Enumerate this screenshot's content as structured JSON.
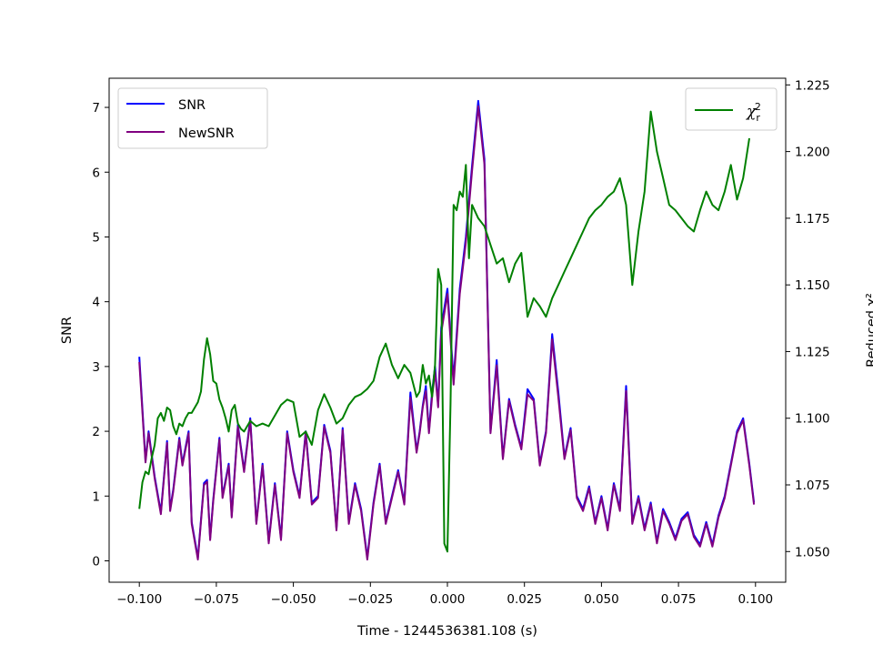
{
  "chart_data": {
    "type": "line",
    "title": "",
    "xlabel": "Time - 1244536381.108 (s)",
    "ylabel": "SNR",
    "y2label": "Reduced χ²",
    "xlim": [
      -0.1098,
      0.1098
    ],
    "ylim": [
      -0.33,
      7.45
    ],
    "y2lim": [
      1.0385,
      1.2275
    ],
    "x_ticks": [
      -0.1,
      -0.075,
      -0.05,
      -0.025,
      0.0,
      0.025,
      0.05,
      0.075,
      0.1
    ],
    "x_tick_labels": [
      "−0.100",
      "−0.075",
      "−0.050",
      "−0.025",
      "0.000",
      "0.025",
      "0.050",
      "0.075",
      "0.100"
    ],
    "y_ticks": [
      0,
      1,
      2,
      3,
      4,
      5,
      6,
      7
    ],
    "y_tick_labels": [
      "0",
      "1",
      "2",
      "3",
      "4",
      "5",
      "6",
      "7"
    ],
    "y2_ticks": [
      1.05,
      1.075,
      1.1,
      1.125,
      1.15,
      1.175,
      1.2,
      1.225
    ],
    "y2_tick_labels": [
      "1.050",
      "1.075",
      "1.100",
      "1.125",
      "1.150",
      "1.175",
      "1.200",
      "1.225"
    ],
    "grid": false,
    "legend_left": {
      "placement": "upper-left",
      "entries": [
        "SNR",
        "NewSNR"
      ]
    },
    "legend_right": {
      "placement": "upper-right",
      "entries": [
        "χ_r^2"
      ]
    },
    "series": [
      {
        "name": "SNR",
        "axis": "left",
        "color": "#0000ff",
        "x": [
          -0.1,
          -0.098,
          -0.097,
          -0.095,
          -0.093,
          -0.091,
          -0.09,
          -0.089,
          -0.087,
          -0.086,
          -0.084,
          -0.083,
          -0.081,
          -0.079,
          -0.078,
          -0.077,
          -0.076,
          -0.074,
          -0.073,
          -0.071,
          -0.07,
          -0.068,
          -0.066,
          -0.064,
          -0.062,
          -0.06,
          -0.058,
          -0.056,
          -0.054,
          -0.052,
          -0.05,
          -0.048,
          -0.046,
          -0.044,
          -0.042,
          -0.04,
          -0.038,
          -0.036,
          -0.034,
          -0.032,
          -0.03,
          -0.028,
          -0.026,
          -0.024,
          -0.022,
          -0.02,
          -0.018,
          -0.016,
          -0.014,
          -0.012,
          -0.01,
          -0.009,
          -0.008,
          -0.007,
          -0.006,
          -0.005,
          -0.004,
          -0.003,
          -0.002,
          0.0,
          0.002,
          0.004,
          0.006,
          0.008,
          0.01,
          0.012,
          0.014,
          0.016,
          0.018,
          0.02,
          0.022,
          0.024,
          0.026,
          0.028,
          0.03,
          0.032,
          0.034,
          0.036,
          0.038,
          0.04,
          0.042,
          0.044,
          0.046,
          0.048,
          0.05,
          0.052,
          0.054,
          0.056,
          0.058,
          0.06,
          0.062,
          0.064,
          0.066,
          0.068,
          0.07,
          0.072,
          0.074,
          0.076,
          0.078,
          0.08,
          0.082,
          0.084,
          0.086,
          0.088,
          0.09,
          0.092,
          0.094,
          0.096,
          0.098,
          0.0995
        ],
        "y": [
          3.15,
          1.55,
          2.0,
          1.3,
          0.75,
          1.85,
          0.8,
          1.1,
          1.9,
          1.5,
          2.0,
          0.6,
          0.05,
          1.2,
          1.25,
          0.35,
          0.95,
          1.9,
          1.0,
          1.5,
          0.7,
          2.1,
          1.4,
          2.2,
          0.6,
          1.5,
          0.3,
          1.2,
          0.35,
          2.0,
          1.4,
          1.0,
          2.0,
          0.9,
          1.0,
          2.1,
          1.7,
          0.5,
          2.05,
          0.6,
          1.2,
          0.8,
          0.05,
          0.9,
          1.5,
          0.6,
          1.0,
          1.4,
          0.9,
          2.6,
          1.7,
          2.0,
          2.4,
          2.7,
          2.0,
          2.6,
          3.0,
          2.4,
          3.6,
          4.2,
          2.8,
          4.2,
          5.0,
          6.1,
          7.1,
          6.2,
          2.0,
          3.1,
          1.6,
          2.5,
          2.1,
          1.75,
          2.65,
          2.5,
          1.5,
          2.0,
          3.5,
          2.6,
          1.6,
          2.05,
          1.0,
          0.8,
          1.15,
          0.6,
          1.0,
          0.5,
          1.2,
          0.8,
          2.7,
          0.6,
          1.0,
          0.5,
          0.9,
          0.3,
          0.8,
          0.6,
          0.35,
          0.65,
          0.75,
          0.4,
          0.25,
          0.6,
          0.25,
          0.7,
          1.0,
          1.5,
          2.0,
          2.2,
          1.5,
          0.9
        ],
        "note": ""
      },
      {
        "name": "NewSNR",
        "axis": "left",
        "color": "#800080",
        "x": [],
        "y": []
      },
      {
        "name": "χ_r^2",
        "axis": "right",
        "color": "#008000",
        "x": [],
        "y": []
      }
    ]
  }
}
